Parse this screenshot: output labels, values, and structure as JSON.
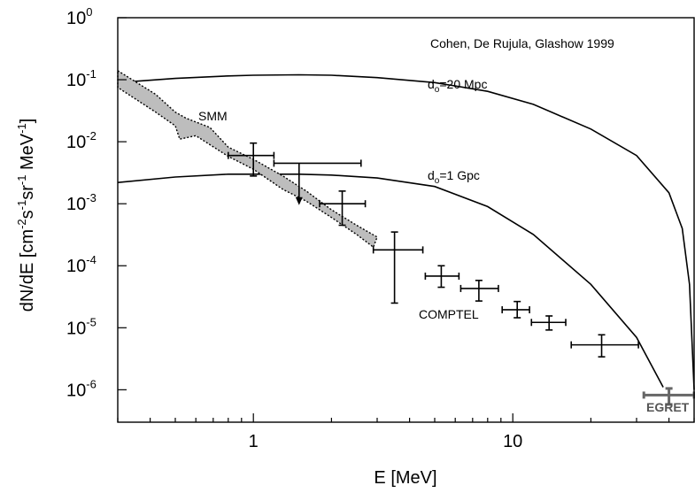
{
  "chart_data": {
    "type": "scatter",
    "xlabel": "E [MeV]",
    "ylabel": "dN/dE [cm^-2 s^-1 sr^-1 MeV^-1]",
    "x_scale": "log",
    "y_scale": "log",
    "xlim": [
      0.3,
      50
    ],
    "ylim": [
      3e-07,
      1.0
    ],
    "x_ticks": [
      1,
      10
    ],
    "x_tick_labels": [
      "1",
      "10"
    ],
    "y_ticks": [
      1e-06,
      1e-05,
      0.0001,
      0.001,
      0.01,
      0.1,
      1
    ],
    "y_tick_labels": [
      {
        "base": "10",
        "exp": "-6"
      },
      {
        "base": "10",
        "exp": "-5"
      },
      {
        "base": "10",
        "exp": "-4"
      },
      {
        "base": "10",
        "exp": "-3"
      },
      {
        "base": "10",
        "exp": "-2"
      },
      {
        "base": "10",
        "exp": "-1"
      },
      {
        "base": "10",
        "exp": "0"
      }
    ],
    "ylabel_parts": [
      {
        "t": "dN/dE [cm",
        "sup": false
      },
      {
        "t": "-2",
        "sup": true
      },
      {
        "t": "s",
        "sup": false
      },
      {
        "t": "-1",
        "sup": true
      },
      {
        "t": "sr",
        "sup": false
      },
      {
        "t": "-1",
        "sup": true
      },
      {
        "t": " MeV",
        "sup": false
      },
      {
        "t": "-1",
        "sup": true
      },
      {
        "t": "]",
        "sup": false
      }
    ],
    "grid": false,
    "legend": "none",
    "annotations": {
      "reference": "Cohen, De Rujula, Glashow 1999",
      "smm": "SMM",
      "comptel": "COMPTEL",
      "egret": "EGRET",
      "curve_20mpc": {
        "pre": "d",
        "sub": "o",
        "post": "=20 Mpc"
      },
      "curve_1gpc": {
        "pre": "d",
        "sub": "o",
        "post": "=1 Gpc"
      }
    },
    "series": [
      {
        "name": "d_o=20 Mpc",
        "kind": "line",
        "points": [
          [
            0.3,
            0.09
          ],
          [
            0.5,
            0.105
          ],
          [
            0.8,
            0.115
          ],
          [
            1.0,
            0.118
          ],
          [
            1.5,
            0.12
          ],
          [
            2.0,
            0.118
          ],
          [
            3.0,
            0.108
          ],
          [
            5.0,
            0.09
          ],
          [
            8.0,
            0.065
          ],
          [
            12.0,
            0.04
          ],
          [
            20.0,
            0.016
          ],
          [
            30.0,
            0.006
          ],
          [
            40.0,
            0.0015
          ],
          [
            45.0,
            0.0004
          ],
          [
            48.0,
            5e-05
          ],
          [
            50.0,
            1e-06
          ]
        ]
      },
      {
        "name": "d_o=1 Gpc",
        "kind": "line",
        "points": [
          [
            0.3,
            0.0022
          ],
          [
            0.5,
            0.0027
          ],
          [
            0.8,
            0.003
          ],
          [
            1.0,
            0.003
          ],
          [
            1.5,
            0.003
          ],
          [
            2.0,
            0.0029
          ],
          [
            3.0,
            0.0026
          ],
          [
            5.0,
            0.0019
          ],
          [
            8.0,
            0.0009
          ],
          [
            12.0,
            0.00032
          ],
          [
            20.0,
            5e-05
          ],
          [
            30.0,
            7e-06
          ],
          [
            38.0,
            1.1e-06
          ]
        ]
      },
      {
        "name": "SMM",
        "kind": "band",
        "upper": [
          [
            0.3,
            0.14
          ],
          [
            0.42,
            0.058
          ],
          [
            0.5,
            0.03
          ],
          [
            0.55,
            0.024
          ],
          [
            0.68,
            0.017
          ],
          [
            0.8,
            0.0082
          ],
          [
            1.0,
            0.0052
          ],
          [
            1.3,
            0.0028
          ],
          [
            1.6,
            0.0016
          ],
          [
            2.0,
            0.0008
          ],
          [
            2.5,
            0.00045
          ],
          [
            3.0,
            0.00029
          ]
        ],
        "lower": [
          [
            0.3,
            0.075
          ],
          [
            0.42,
            0.03
          ],
          [
            0.5,
            0.018
          ],
          [
            0.52,
            0.011
          ],
          [
            0.6,
            0.0125
          ],
          [
            0.8,
            0.0058
          ],
          [
            1.0,
            0.0036
          ],
          [
            1.3,
            0.0017
          ],
          [
            1.6,
            0.0011
          ],
          [
            2.0,
            0.0006
          ],
          [
            2.5,
            0.00032
          ],
          [
            2.9,
            0.0002
          ]
        ]
      },
      {
        "name": "COMPTEL",
        "kind": "errorbars",
        "points": [
          {
            "x": 1.0,
            "y": 0.006,
            "xlo": 0.8,
            "xhi": 1.2,
            "ylo": 0.0028,
            "yhi": 0.0095
          },
          {
            "x": 1.5,
            "y": 0.0045,
            "xlo": 1.2,
            "xhi": 2.6,
            "upper_limit": true,
            "arrow_to": 0.00095
          },
          {
            "x": 2.2,
            "y": 0.001,
            "xlo": 1.8,
            "xhi": 2.7,
            "ylo": 0.00045,
            "yhi": 0.0016
          },
          {
            "x": 3.5,
            "y": 0.00018,
            "xlo": 2.9,
            "xhi": 4.5,
            "ylo": 2.5e-05,
            "yhi": 0.00035
          },
          {
            "x": 5.3,
            "y": 6.8e-05,
            "xlo": 4.6,
            "xhi": 6.2,
            "ylo": 4.5e-05,
            "yhi": 0.0001
          },
          {
            "x": 7.4,
            "y": 4.3e-05,
            "xlo": 6.3,
            "xhi": 8.8,
            "ylo": 2.7e-05,
            "yhi": 5.8e-05
          },
          {
            "x": 10.4,
            "y": 1.95e-05,
            "xlo": 9.1,
            "xhi": 11.6,
            "ylo": 1.45e-05,
            "yhi": 2.65e-05
          },
          {
            "x": 13.8,
            "y": 1.22e-05,
            "xlo": 11.8,
            "xhi": 16.0,
            "ylo": 9.2e-06,
            "yhi": 1.55e-05
          },
          {
            "x": 22.0,
            "y": 5.3e-06,
            "xlo": 16.8,
            "xhi": 30.5,
            "ylo": 3.4e-06,
            "yhi": 7.7e-06
          }
        ]
      },
      {
        "name": "EGRET",
        "kind": "errorbars",
        "color": "#666666",
        "points": [
          {
            "x": 40.0,
            "y": 8.2e-07,
            "xlo": 32.0,
            "xhi": 50.0,
            "ylo": 5.8e-07,
            "yhi": 1.05e-06
          }
        ]
      }
    ]
  }
}
